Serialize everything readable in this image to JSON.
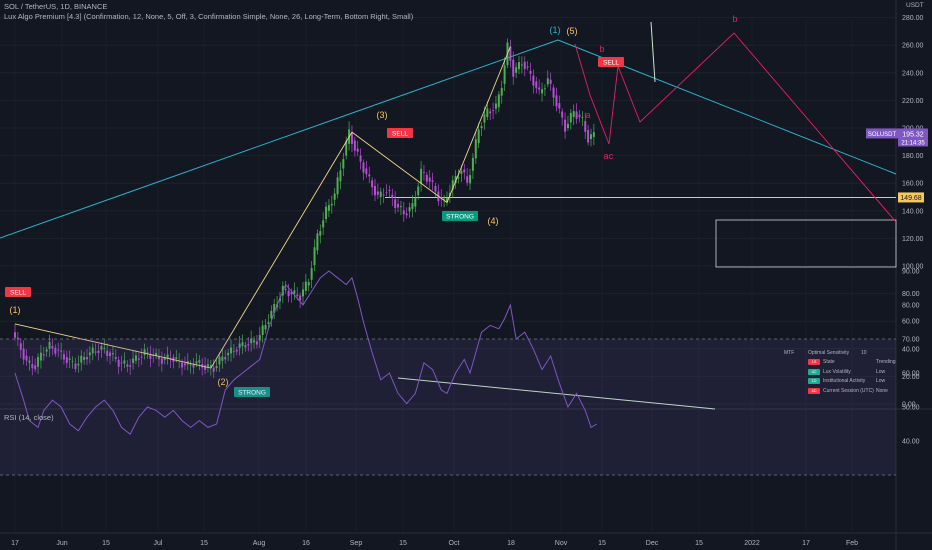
{
  "header": {
    "title": "SOL / TetherUS, 1D, BINANCE",
    "indicator": "Lux Algo Premium [4.3] (Confirmation, 12, None, 5, Off, 3, Confirmation Simple, None, 26, Long-Term, Bottom Right, Small)",
    "currency": "USDT"
  },
  "chart_data": [
    {
      "type": "candlestick",
      "symbol": "SOLUSDT",
      "x_ticks": [
        "17",
        "Jun",
        "15",
        "Jul",
        "15",
        "Aug",
        "16",
        "Sep",
        "15",
        "Oct",
        "18",
        "Nov",
        "15",
        "Dec",
        "15",
        "2022",
        "17",
        "Feb"
      ],
      "y_ticks": [
        0,
        20,
        40,
        60,
        80,
        100,
        120,
        140,
        160,
        180,
        200,
        220,
        240,
        260,
        280
      ],
      "ylim": [
        0,
        290
      ],
      "price_label": {
        "symbol": "SOLUSDT",
        "value": "195.32",
        "countdown": "21:14:35"
      },
      "level_label": "149.68",
      "level_value": 149.68,
      "swing_points": [
        {
          "label": "(1)",
          "day": 0,
          "value": 58
        },
        {
          "label": "(2)",
          "day": 68,
          "value": 26
        },
        {
          "label": "(3)",
          "day": 117,
          "value": 197
        },
        {
          "label": "(4)",
          "day": 150,
          "value": 146
        },
        {
          "label": "(5)",
          "day": 172,
          "value": 259
        }
      ],
      "annotations": [
        "(1)",
        "a",
        "b",
        "a",
        "c",
        "b"
      ],
      "signals": [
        {
          "label": "SELL",
          "kind": "sell"
        },
        {
          "label": "SELL",
          "kind": "sell"
        },
        {
          "label": "SELL",
          "kind": "sell"
        },
        {
          "label": "STRONG",
          "kind": "buy"
        },
        {
          "label": "STRONG",
          "kind": "buy"
        }
      ],
      "close_series": [
        [
          0,
          52
        ],
        [
          3,
          40
        ],
        [
          5,
          30
        ],
        [
          8,
          27
        ],
        [
          10,
          36
        ],
        [
          13,
          42
        ],
        [
          16,
          38
        ],
        [
          19,
          32
        ],
        [
          22,
          28
        ],
        [
          25,
          34
        ],
        [
          28,
          38
        ],
        [
          31,
          40
        ],
        [
          34,
          36
        ],
        [
          37,
          30
        ],
        [
          40,
          28
        ],
        [
          43,
          33
        ],
        [
          46,
          37
        ],
        [
          49,
          35
        ],
        [
          52,
          32
        ],
        [
          55,
          34
        ],
        [
          58,
          30
        ],
        [
          61,
          28
        ],
        [
          64,
          30
        ],
        [
          67,
          27
        ],
        [
          70,
          26
        ],
        [
          73,
          34
        ],
        [
          76,
          38
        ],
        [
          79,
          42
        ],
        [
          82,
          44
        ],
        [
          85,
          46
        ],
        [
          88,
          58
        ],
        [
          91,
          70
        ],
        [
          94,
          83
        ],
        [
          97,
          80
        ],
        [
          100,
          78
        ],
        [
          103,
          90
        ],
        [
          106,
          122
        ],
        [
          109,
          140
        ],
        [
          112,
          152
        ],
        [
          115,
          180
        ],
        [
          117,
          197
        ],
        [
          119,
          185
        ],
        [
          121,
          175
        ],
        [
          124,
          162
        ],
        [
          127,
          150
        ],
        [
          130,
          155
        ],
        [
          133,
          145
        ],
        [
          136,
          138
        ],
        [
          139,
          143
        ],
        [
          142,
          168
        ],
        [
          145,
          162
        ],
        [
          148,
          150
        ],
        [
          150,
          146
        ],
        [
          153,
          160
        ],
        [
          156,
          170
        ],
        [
          158,
          160
        ],
        [
          160,
          178
        ],
        [
          162,
          200
        ],
        [
          165,
          212
        ],
        [
          168,
          215
        ],
        [
          170,
          232
        ],
        [
          172,
          259
        ],
        [
          174,
          240
        ],
        [
          177,
          248
        ],
        [
          180,
          238
        ],
        [
          183,
          225
        ],
        [
          186,
          235
        ],
        [
          189,
          218
        ],
        [
          192,
          200
        ],
        [
          195,
          212
        ],
        [
          198,
          205
        ],
        [
          200,
          192
        ],
        [
          202,
          195
        ]
      ]
    },
    {
      "type": "line",
      "title": "RSI (14, close)",
      "y_ticks": [
        40,
        50,
        60,
        70,
        80,
        90
      ],
      "band": [
        30,
        70
      ],
      "series": [
        {
          "values": [
            [
              0,
              60
            ],
            [
              3,
              52
            ],
            [
              5,
              46
            ],
            [
              8,
              44
            ],
            [
              10,
              49
            ],
            [
              13,
              52
            ],
            [
              16,
              50
            ],
            [
              19,
              45
            ],
            [
              22,
              43
            ],
            [
              25,
              47
            ],
            [
              28,
              50
            ],
            [
              31,
              52
            ],
            [
              34,
              49
            ],
            [
              37,
              44
            ],
            [
              40,
              42
            ],
            [
              43,
              47
            ],
            [
              46,
              50
            ],
            [
              49,
              49
            ],
            [
              52,
              47
            ],
            [
              55,
              49
            ],
            [
              58,
              46
            ],
            [
              61,
              44
            ],
            [
              64,
              46
            ],
            [
              67,
              44
            ],
            [
              70,
              45
            ],
            [
              73,
              55
            ],
            [
              76,
              58
            ],
            [
              79,
              60
            ],
            [
              82,
              62
            ],
            [
              85,
              64
            ],
            [
              88,
              73
            ],
            [
              91,
              80
            ],
            [
              94,
              86
            ],
            [
              97,
              83
            ],
            [
              100,
              80
            ],
            [
              103,
              84
            ],
            [
              106,
              88
            ],
            [
              109,
              90
            ],
            [
              112,
              88
            ],
            [
              115,
              86
            ],
            [
              117,
              88
            ],
            [
              119,
              82
            ],
            [
              121,
              75
            ],
            [
              124,
              66
            ],
            [
              127,
              58
            ],
            [
              130,
              60
            ],
            [
              133,
              54
            ],
            [
              136,
              51
            ],
            [
              139,
              54
            ],
            [
              142,
              63
            ],
            [
              145,
              61
            ],
            [
              148,
              55
            ],
            [
              150,
              54
            ],
            [
              153,
              60
            ],
            [
              156,
              64
            ],
            [
              158,
              60
            ],
            [
              160,
              66
            ],
            [
              162,
              72
            ],
            [
              165,
              74
            ],
            [
              168,
              73
            ],
            [
              170,
              76
            ],
            [
              172,
              80
            ],
            [
              174,
              70
            ],
            [
              177,
              72
            ],
            [
              180,
              67
            ],
            [
              183,
              61
            ],
            [
              186,
              65
            ],
            [
              189,
              57
            ],
            [
              192,
              50
            ],
            [
              195,
              54
            ],
            [
              198,
              49
            ],
            [
              200,
              44
            ],
            [
              202,
              45
            ]
          ]
        }
      ]
    }
  ],
  "status_table": {
    "header": [
      "MTF",
      "Optimal Sensitivity",
      "10"
    ],
    "rows": [
      {
        "badge": "1S",
        "label": "State",
        "value": "Trending",
        "color": "#f23645"
      },
      {
        "badge": "4C",
        "label": "Lux Volatility",
        "value": "Low",
        "color": "#22ab94"
      },
      {
        "badge": "1D",
        "label": "Institutional Activity",
        "value": "Low",
        "color": "#22ab94"
      },
      {
        "badge": "4D",
        "label": "Current Session (UTC)",
        "value": "None",
        "color": "#f23645"
      }
    ]
  }
}
